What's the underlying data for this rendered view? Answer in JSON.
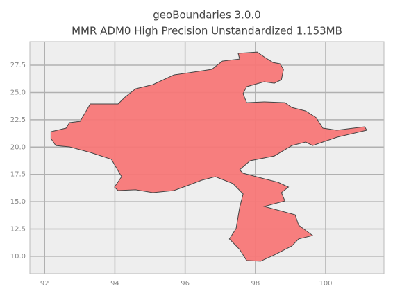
{
  "chart_data": {
    "type": "map",
    "title": "geoBoundaries 3.0.0",
    "subtitle": "MMR ADM0 High Precision Unstandardized 1.153MB",
    "xlim": [
      91.58,
      101.66
    ],
    "ylim": [
      8.41,
      29.66
    ],
    "xticks": [
      92,
      94,
      96,
      98,
      100
    ],
    "yticks": [
      {
        "value": 10,
        "label": "10.0"
      },
      {
        "value": 12.5,
        "label": "12.5"
      },
      {
        "value": 15,
        "label": "15.0"
      },
      {
        "value": 17.5,
        "label": "17.5"
      },
      {
        "value": 20,
        "label": "20.0"
      },
      {
        "value": 22.5,
        "label": "22.5"
      },
      {
        "value": 25,
        "label": "25.0"
      },
      {
        "value": 27.5,
        "label": "27.5"
      }
    ],
    "grid": true,
    "series": [
      {
        "color": "#f77777",
        "x": [
          92.18,
          92.61,
          92.71,
          93.01,
          93.3,
          94.09,
          94.29,
          94.59,
          95.08,
          95.68,
          96.37,
          96.76,
          97.06,
          97.55,
          97.51,
          98.05,
          98.25,
          98.5,
          98.7,
          98.8,
          98.74,
          98.54,
          98.25,
          97.75,
          97.65,
          97.75,
          98.25,
          98.84,
          99.04,
          99.43,
          99.73,
          99.92,
          100.32,
          101.11,
          101.17,
          100.32,
          99.92,
          99.63,
          99.43,
          99.04,
          98.54,
          97.85,
          97.55,
          97.65,
          98.25,
          98.64,
          98.94,
          98.74,
          98.84,
          98.25,
          99.13,
          99.23,
          99.63,
          99.23,
          99.04,
          98.54,
          98.15,
          97.75,
          97.55,
          97.26,
          97.45,
          97.55,
          97.65,
          97.36,
          96.86,
          96.47,
          96.07,
          95.68,
          95.08,
          94.59,
          94.09,
          93.99,
          94.19,
          93.9,
          93.3,
          92.71,
          92.32,
          92.18
        ],
        "y": [
          21.41,
          21.73,
          22.24,
          22.36,
          23.95,
          23.95,
          24.58,
          25.34,
          25.72,
          26.61,
          26.93,
          27.12,
          27.88,
          28.07,
          28.58,
          28.7,
          28.26,
          27.75,
          27.63,
          27.12,
          26.17,
          25.85,
          25.98,
          25.53,
          24.9,
          24.07,
          24.14,
          24.07,
          23.63,
          23.31,
          22.68,
          21.73,
          21.54,
          21.86,
          21.54,
          20.9,
          20.46,
          20.14,
          20.46,
          20.14,
          19.19,
          18.75,
          17.92,
          17.61,
          17.1,
          16.78,
          16.34,
          15.83,
          15.07,
          14.56,
          13.8,
          12.85,
          11.9,
          11.59,
          10.95,
          10.13,
          9.56,
          9.62,
          10.63,
          11.59,
          12.54,
          14.44,
          15.71,
          16.66,
          17.29,
          16.97,
          16.47,
          16.02,
          15.83,
          16.09,
          16.02,
          16.34,
          17.29,
          18.88,
          19.51,
          20.02,
          20.14,
          20.78
        ]
      }
    ]
  }
}
